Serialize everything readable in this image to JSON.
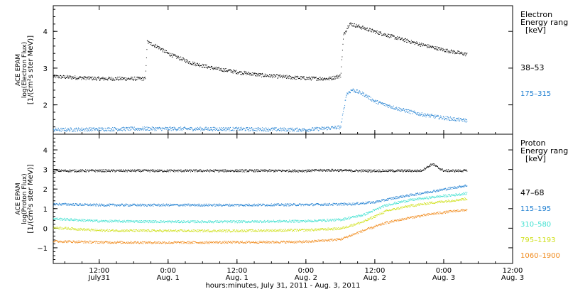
{
  "xlabel": "hours:minutes, July 31, 2011 - Aug. 3, 2011",
  "x_ticks": [
    {
      "t": 12,
      "line1": "12:00",
      "line2": "July31"
    },
    {
      "t": 24,
      "line1": "0:00",
      "line2": "Aug. 1"
    },
    {
      "t": 36,
      "line1": "12:00",
      "line2": "Aug. 1"
    },
    {
      "t": 48,
      "line1": "0:00",
      "line2": "Aug. 2"
    },
    {
      "t": 60,
      "line1": "12:00",
      "line2": "Aug. 2"
    },
    {
      "t": 72,
      "line1": "0:00",
      "line2": "Aug. 3"
    },
    {
      "t": 84,
      "line1": "12:00",
      "line2": "Aug. 3"
    }
  ],
  "chart_data": [
    {
      "type": "scatter",
      "x_unit": "hours since 00:00 July 31, 2011",
      "xlim": [
        4,
        84
      ],
      "ylim": [
        1.2,
        4.7
      ],
      "yticks": [
        2,
        3,
        4
      ],
      "ylabel_lines": [
        "ACE EPAM",
        "log(Electron Flux)",
        "[1/(cm²s ster MeV)]"
      ],
      "legend_title_lines": [
        "Electron",
        "Energy ranges",
        "[keV]"
      ],
      "series": [
        {
          "name": "38–53",
          "color": "#000000",
          "x": [
            4,
            12,
            20,
            20.3,
            22,
            24,
            28,
            32,
            36,
            40,
            44,
            48,
            52,
            54,
            54.5,
            55.5,
            57,
            60,
            64,
            68,
            72,
            76
          ],
          "y": [
            2.78,
            2.72,
            2.72,
            3.72,
            3.6,
            3.4,
            3.15,
            3.0,
            2.9,
            2.82,
            2.77,
            2.73,
            2.72,
            2.8,
            3.9,
            4.22,
            4.15,
            4.0,
            3.82,
            3.65,
            3.5,
            3.38
          ]
        },
        {
          "name": "175–315",
          "color": "#1f7fd1",
          "x": [
            4,
            20,
            36,
            48,
            54,
            55,
            56,
            58,
            60,
            64,
            68,
            72,
            76
          ],
          "y": [
            1.33,
            1.36,
            1.35,
            1.33,
            1.4,
            2.3,
            2.42,
            2.3,
            2.1,
            1.9,
            1.75,
            1.65,
            1.58
          ]
        }
      ]
    },
    {
      "type": "scatter",
      "x_unit": "hours since 00:00 July 31, 2011",
      "xlim": [
        4,
        84
      ],
      "ylim": [
        -1.8,
        4.8
      ],
      "yticks": [
        -1,
        0,
        1,
        2,
        3,
        4
      ],
      "ylabel_lines": [
        "ACE EPAM",
        "log(Proton Flux)",
        "[1/(cm²s ster MeV)]"
      ],
      "legend_title_lines": [
        "Proton",
        "Energy ranges",
        "[keV]"
      ],
      "series": [
        {
          "name": "47–68",
          "color": "#000000",
          "x": [
            4,
            20,
            36,
            48,
            52,
            56,
            60,
            64,
            68,
            70,
            71,
            72,
            76
          ],
          "y": [
            2.95,
            2.95,
            2.95,
            2.95,
            2.98,
            2.95,
            2.95,
            2.95,
            2.95,
            3.3,
            3.1,
            2.95,
            2.95
          ]
        },
        {
          "name": "115–195",
          "color": "#1f7fd1",
          "x": [
            4,
            12,
            24,
            36,
            48,
            56,
            60,
            64,
            68,
            72,
            76
          ],
          "y": [
            1.25,
            1.2,
            1.2,
            1.2,
            1.22,
            1.25,
            1.35,
            1.6,
            1.8,
            2.0,
            2.2
          ]
        },
        {
          "name": "310–580",
          "color": "#3fe0d0",
          "x": [
            4,
            12,
            24,
            36,
            48,
            54,
            58,
            62,
            66,
            70,
            74,
            76
          ],
          "y": [
            0.5,
            0.38,
            0.35,
            0.35,
            0.38,
            0.45,
            0.7,
            1.2,
            1.45,
            1.6,
            1.72,
            1.8
          ]
        },
        {
          "name": "795–1193",
          "color": "#cfe01a",
          "x": [
            4,
            12,
            24,
            36,
            48,
            54,
            58,
            62,
            66,
            70,
            74,
            76
          ],
          "y": [
            0.05,
            -0.1,
            -0.12,
            -0.12,
            -0.08,
            0.0,
            0.35,
            0.9,
            1.15,
            1.32,
            1.45,
            1.52
          ]
        },
        {
          "name": "1060–1900",
          "color": "#f08a1c",
          "x": [
            4,
            12,
            24,
            36,
            48,
            54,
            58,
            62,
            66,
            70,
            74,
            76
          ],
          "y": [
            -0.65,
            -0.7,
            -0.72,
            -0.7,
            -0.68,
            -0.55,
            -0.1,
            0.3,
            0.55,
            0.75,
            0.9,
            0.95
          ]
        }
      ]
    }
  ]
}
